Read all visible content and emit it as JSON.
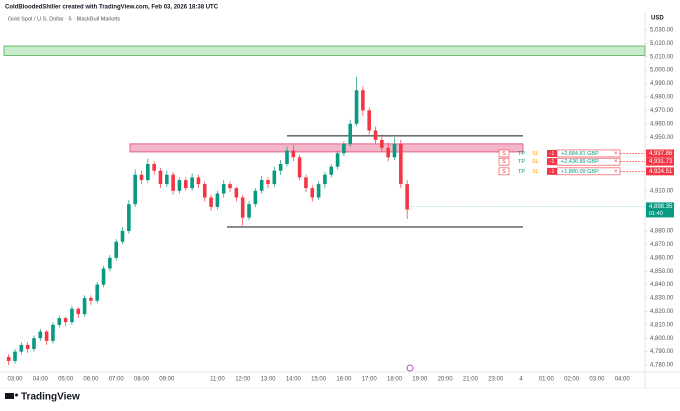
{
  "chart_data": {
    "type": "candlestick",
    "attribution": "ColdBloodedShiller created with TradingView.com, Feb 03, 2026 18:38 UTC",
    "symbol": "Gold Spot / U.S. Dollar · 5 · BlackBull Markets",
    "currency": "USD",
    "brand": "TradingView",
    "up_color": "#089981",
    "down_color": "#f23645",
    "categories": [
      "03:00",
      "04:00",
      "05:00",
      "06:00",
      "07:00",
      "08:00",
      "09:00",
      null,
      "11:00",
      "12:00",
      "13:00",
      "14:00",
      "15:00",
      "16:00",
      "17:00",
      "18:00",
      "19:00",
      "20:00",
      "21:00",
      "23:00",
      "4",
      "01:00",
      "02:00",
      "03:00",
      "04:00"
    ],
    "open": [
      4786,
      4783,
      4790,
      4795,
      4792,
      4800,
      4805,
      4798,
      4810,
      4815,
      4812,
      4822,
      4818,
      4830,
      4828,
      4840,
      4852,
      4860,
      4872,
      4880,
      4900,
      4922,
      4918,
      4930,
      4925,
      4915,
      4922,
      4910,
      4918,
      4912,
      4920,
      4915,
      4905,
      4898,
      4908,
      4915,
      4912,
      4905,
      4890,
      4900,
      4910,
      4918,
      4915,
      4925,
      4930,
      4940,
      4935,
      4920,
      4912,
      4905,
      4915,
      4922,
      4928,
      4938,
      4945,
      4960,
      4985,
      4970,
      4955,
      4948,
      4942,
      4935,
      4945,
      4915
    ],
    "high": [
      4788,
      4792,
      4797,
      4797,
      4802,
      4807,
      4806,
      4812,
      4817,
      4816,
      4824,
      4823,
      4832,
      4832,
      4842,
      4854,
      4862,
      4874,
      4883,
      4903,
      4926,
      4925,
      4934,
      4932,
      4927,
      4925,
      4924,
      4920,
      4920,
      4923,
      4922,
      4917,
      4907,
      4910,
      4918,
      4917,
      4913,
      4907,
      4902,
      4912,
      4921,
      4920,
      4928,
      4933,
      4943,
      4944,
      4937,
      4922,
      4914,
      4917,
      4924,
      4930,
      4940,
      4947,
      4963,
      4995,
      4988,
      4972,
      4958,
      4952,
      4946,
      4950,
      4948,
      4918
    ],
    "low": [
      4780,
      4781,
      4788,
      4789,
      4790,
      4798,
      4795,
      4796,
      4808,
      4809,
      4810,
      4815,
      4816,
      4825,
      4826,
      4838,
      4850,
      4858,
      4870,
      4878,
      4898,
      4915,
      4916,
      4922,
      4912,
      4913,
      4907,
      4908,
      4910,
      4910,
      4912,
      4902,
      4895,
      4896,
      4905,
      4909,
      4902,
      4884,
      4888,
      4898,
      4908,
      4912,
      4913,
      4922,
      4928,
      4932,
      4918,
      4909,
      4902,
      4903,
      4912,
      4920,
      4926,
      4936,
      4943,
      4958,
      4966,
      4952,
      4945,
      4939,
      4932,
      4933,
      4912,
      4889
    ],
    "close": [
      4783,
      4790,
      4795,
      4792,
      4800,
      4805,
      4798,
      4810,
      4815,
      4812,
      4822,
      4818,
      4830,
      4828,
      4840,
      4852,
      4860,
      4872,
      4880,
      4900,
      4922,
      4918,
      4930,
      4925,
      4915,
      4922,
      4910,
      4918,
      4912,
      4920,
      4915,
      4905,
      4898,
      4908,
      4915,
      4912,
      4905,
      4890,
      4900,
      4910,
      4918,
      4915,
      4925,
      4930,
      4940,
      4935,
      4920,
      4912,
      4905,
      4915,
      4922,
      4928,
      4938,
      4945,
      4960,
      4985,
      4970,
      4955,
      4948,
      4942,
      4935,
      4945,
      4915,
      4896
    ],
    "ylim": [
      4774.8,
      5033.7
    ],
    "yticks": [
      {
        "value": 5030,
        "label": "5,030.00"
      },
      {
        "value": 5020,
        "label": "5,020.00"
      },
      {
        "value": 5010,
        "label": "5,010.00"
      },
      {
        "value": 5000,
        "label": "5,000.00"
      },
      {
        "value": 4990,
        "label": "4,990.00"
      },
      {
        "value": 4980,
        "label": "4,980.00"
      },
      {
        "value": 4970,
        "label": "4,970.00"
      },
      {
        "value": 4960,
        "label": "4,960.00"
      },
      {
        "value": 4950,
        "label": "4,950.00"
      },
      {
        "value": 4910,
        "label": "4,910.00"
      },
      {
        "value": 4880,
        "label": "4,880.00"
      },
      {
        "value": 4870,
        "label": "4,870.00"
      },
      {
        "value": 4860,
        "label": "4,860.00"
      },
      {
        "value": 4850,
        "label": "4,850.00"
      },
      {
        "value": 4840,
        "label": "4,840.00"
      },
      {
        "value": 4830,
        "label": "4,830.00"
      },
      {
        "value": 4820,
        "label": "4,820.00"
      },
      {
        "value": 4810,
        "label": "4,810.00"
      },
      {
        "value": 4800,
        "label": "4,800.00"
      },
      {
        "value": 4790,
        "label": "4,790.00"
      },
      {
        "value": 4780,
        "label": "4,780.00"
      }
    ],
    "zones": [
      {
        "top": 5018,
        "bottom": 5011,
        "color": "#c8ebcb",
        "border": "#4caf50"
      },
      {
        "top": 4945,
        "bottom": 4939,
        "color": "#f4b6c9",
        "border": "#e0447a"
      }
    ],
    "levels": [
      4951,
      4883
    ],
    "orders": [
      {
        "side": "S",
        "tp": "TP",
        "sl": "SL",
        "qty": -1,
        "pnl": "+2,884.81 GBP",
        "close": "×",
        "price": {
          "value": 4937.86,
          "label": "4,937.86"
        }
      },
      {
        "side": "S",
        "tp": "TP",
        "sl": "SL",
        "qty": -1,
        "pnl": "+2,436.89 GBP",
        "close": "×",
        "price": {
          "value": 4931.73,
          "label": "4,931.73"
        }
      },
      {
        "side": "S",
        "tp": "TP",
        "sl": "SL",
        "qty": -1,
        "pnl": "+1,880.09 GBP",
        "close": "×",
        "price": {
          "value": 4924.51,
          "label": "4,924.51"
        }
      }
    ],
    "last_price": {
      "value": 4898.35,
      "label": "4,898.35"
    },
    "countdown": "01:40"
  }
}
